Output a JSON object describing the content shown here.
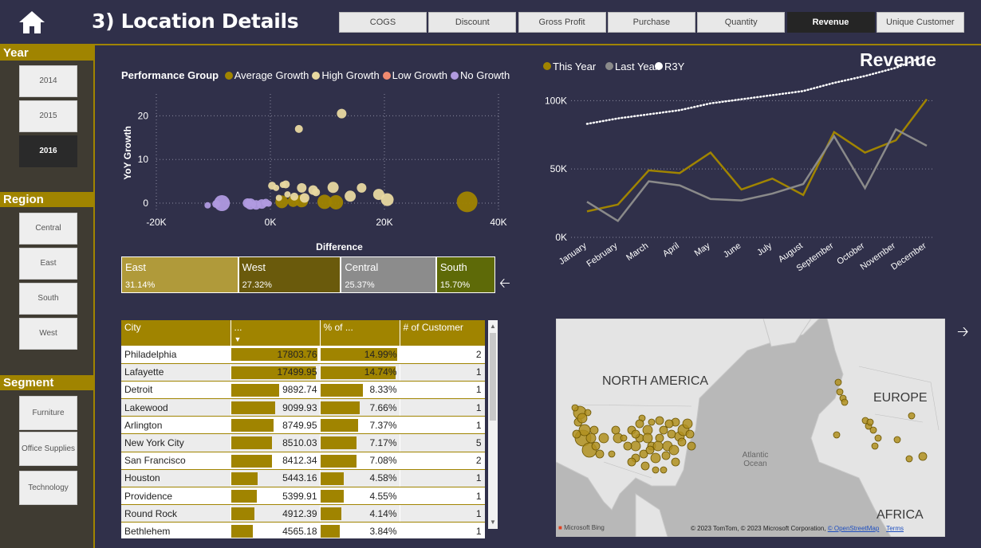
{
  "header": {
    "title": "3) Location Details",
    "nav": [
      {
        "label": "COGS",
        "active": false
      },
      {
        "label": "Discount",
        "active": false
      },
      {
        "label": "Gross Profit",
        "active": false
      },
      {
        "label": "Purchase",
        "active": false
      },
      {
        "label": "Quantity",
        "active": false
      },
      {
        "label": "Revenue",
        "active": true
      },
      {
        "label": "Unique Customer",
        "active": false
      }
    ]
  },
  "sidebar": {
    "year": {
      "label": "Year",
      "options": [
        "2014",
        "2015",
        "2016"
      ],
      "selected": "2016"
    },
    "region": {
      "label": "Region",
      "options": [
        "Central",
        "East",
        "South",
        "West"
      ]
    },
    "segment": {
      "label": "Segment",
      "options": [
        "Furniture",
        "Office Supplies",
        "Technology"
      ]
    }
  },
  "scatter": {
    "legend_title": "Performance Group",
    "legend": [
      {
        "name": "Average Growth",
        "color": "#a08400"
      },
      {
        "name": "High Growth",
        "color": "#e8d8a0"
      },
      {
        "name": "Low Growth",
        "color": "#f08a70"
      },
      {
        "name": "No Growth",
        "color": "#b09ae0"
      }
    ],
    "xlabel": "Difference",
    "ylabel": "YoY Growth",
    "xticks": [
      "-20K",
      "0K",
      "20K",
      "40K"
    ],
    "yticks": [
      "0",
      "10",
      "20"
    ]
  },
  "chart_data": [
    {
      "type": "scatter",
      "xlabel": "Difference",
      "ylabel": "YoY Growth",
      "xlim": [
        -20000,
        40000
      ],
      "ylim": [
        -2,
        25
      ],
      "series": [
        {
          "name": "Average Growth",
          "points": [
            [
              2000,
              0.3,
              8
            ],
            [
              4000,
              0.4,
              7
            ],
            [
              5500,
              0.5,
              8
            ],
            [
              9500,
              0.3,
              9
            ],
            [
              11500,
              0.2,
              9
            ],
            [
              34500,
              0.3,
              13
            ]
          ]
        },
        {
          "name": "High Growth",
          "points": [
            [
              12500,
              20.5,
              6
            ],
            [
              5000,
              17,
              5
            ],
            [
              300,
              4,
              5
            ],
            [
              1000,
              3.5,
              4
            ],
            [
              2200,
              4.2,
              4
            ],
            [
              2700,
              4.3,
              5
            ],
            [
              5500,
              3.5,
              6
            ],
            [
              7500,
              3,
              6
            ],
            [
              8000,
              2.5,
              5
            ],
            [
              3000,
              2,
              4
            ],
            [
              4200,
              1.5,
              5
            ],
            [
              6000,
              1.2,
              6
            ],
            [
              11000,
              3.6,
              7
            ],
            [
              16000,
              3.5,
              6
            ],
            [
              14000,
              1.6,
              7
            ],
            [
              19000,
              2,
              7
            ],
            [
              20500,
              0.8,
              8
            ],
            [
              1500,
              1.2,
              4
            ]
          ]
        },
        {
          "name": "Low Growth",
          "points": []
        },
        {
          "name": "No Growth",
          "points": [
            [
              -11000,
              -0.5,
              4
            ],
            [
              -9500,
              -0.2,
              5
            ],
            [
              -8500,
              0,
              10
            ],
            [
              -4000,
              0,
              6
            ],
            [
              -3500,
              -0.2,
              7
            ],
            [
              -2500,
              -0.4,
              6
            ],
            [
              -1500,
              -0.2,
              6
            ],
            [
              -800,
              0.1,
              5
            ],
            [
              -300,
              -0.1,
              4
            ]
          ]
        }
      ]
    },
    {
      "type": "line",
      "title": "Revenue",
      "categories": [
        "January",
        "February",
        "March",
        "April",
        "May",
        "June",
        "July",
        "August",
        "September",
        "October",
        "November",
        "December"
      ],
      "ylim": [
        0,
        120000
      ],
      "yticks": [
        "0K",
        "50K",
        "100K"
      ],
      "series": [
        {
          "name": "This Year",
          "color": "#a08400",
          "style": "solid",
          "values": [
            19000,
            24000,
            49000,
            47000,
            62000,
            35000,
            43000,
            31000,
            77000,
            62000,
            71000,
            101000
          ]
        },
        {
          "name": "Last Year",
          "color": "#8a8a8a",
          "style": "solid",
          "values": [
            26000,
            12000,
            41000,
            38000,
            28000,
            27000,
            32000,
            39000,
            74000,
            36000,
            79000,
            67000
          ]
        },
        {
          "name": "R3Y",
          "color": "#ffffff",
          "style": "dotted",
          "values": [
            83000,
            87000,
            90000,
            93000,
            98000,
            101000,
            104000,
            107000,
            113000,
            118000,
            124000,
            133000
          ]
        }
      ]
    }
  ],
  "regions": [
    {
      "name": "East",
      "pct": "31.14%",
      "share": 31.14,
      "color": "#b09a3a"
    },
    {
      "name": "West",
      "pct": "27.32%",
      "share": 27.32,
      "color": "#6a5a0c"
    },
    {
      "name": "Central",
      "pct": "25.37%",
      "share": 25.37,
      "color": "#8c8c8c"
    },
    {
      "name": "South",
      "pct": "15.70%",
      "share": 15.7,
      "color": "#5e6a08"
    }
  ],
  "table": {
    "headers": [
      "City",
      "...",
      "% of ...",
      "# of Customer"
    ],
    "max_value": 17803.76,
    "rows": [
      {
        "city": "Philadelphia",
        "value": "17803.76",
        "v": 17803.76,
        "pct": "14.99%",
        "p": 14.99,
        "cust": "2"
      },
      {
        "city": "Lafayette",
        "value": "17499.95",
        "v": 17499.95,
        "pct": "14.74%",
        "p": 14.74,
        "cust": "1"
      },
      {
        "city": "Detroit",
        "value": "9892.74",
        "v": 9892.74,
        "pct": "8.33%",
        "p": 8.33,
        "cust": "1"
      },
      {
        "city": "Lakewood",
        "value": "9099.93",
        "v": 9099.93,
        "pct": "7.66%",
        "p": 7.66,
        "cust": "1"
      },
      {
        "city": "Arlington",
        "value": "8749.95",
        "v": 8749.95,
        "pct": "7.37%",
        "p": 7.37,
        "cust": "1"
      },
      {
        "city": "New York City",
        "value": "8510.03",
        "v": 8510.03,
        "pct": "7.17%",
        "p": 7.17,
        "cust": "5"
      },
      {
        "city": "San Francisco",
        "value": "8412.34",
        "v": 8412.34,
        "pct": "7.08%",
        "p": 7.08,
        "cust": "2"
      },
      {
        "city": "Houston",
        "value": "5443.16",
        "v": 5443.16,
        "pct": "4.58%",
        "p": 4.58,
        "cust": "1"
      },
      {
        "city": "Providence",
        "value": "5399.91",
        "v": 5399.91,
        "pct": "4.55%",
        "p": 4.55,
        "cust": "1"
      },
      {
        "city": "Round Rock",
        "value": "4912.39",
        "v": 4912.39,
        "pct": "4.14%",
        "p": 4.14,
        "cust": "1"
      },
      {
        "city": "Bethlehem",
        "value": "4565.18",
        "v": 4565.18,
        "pct": "3.84%",
        "p": 3.84,
        "cust": "1"
      }
    ]
  },
  "map": {
    "labels": {
      "north_america": "NORTH AMERICA",
      "europe": "EUROPE",
      "africa": "AFRICA",
      "ocean": "Atlantic Ocean"
    },
    "attribution": "© 2023 TomTom, © 2023 Microsoft Corporation, ",
    "osm_link": "© OpenStreetMap",
    "terms": "Terms",
    "bing": "Microsoft Bing"
  },
  "icons": {
    "home": "home-icon",
    "back": "back-arrow-icon",
    "forward": "forward-arrow-icon"
  }
}
